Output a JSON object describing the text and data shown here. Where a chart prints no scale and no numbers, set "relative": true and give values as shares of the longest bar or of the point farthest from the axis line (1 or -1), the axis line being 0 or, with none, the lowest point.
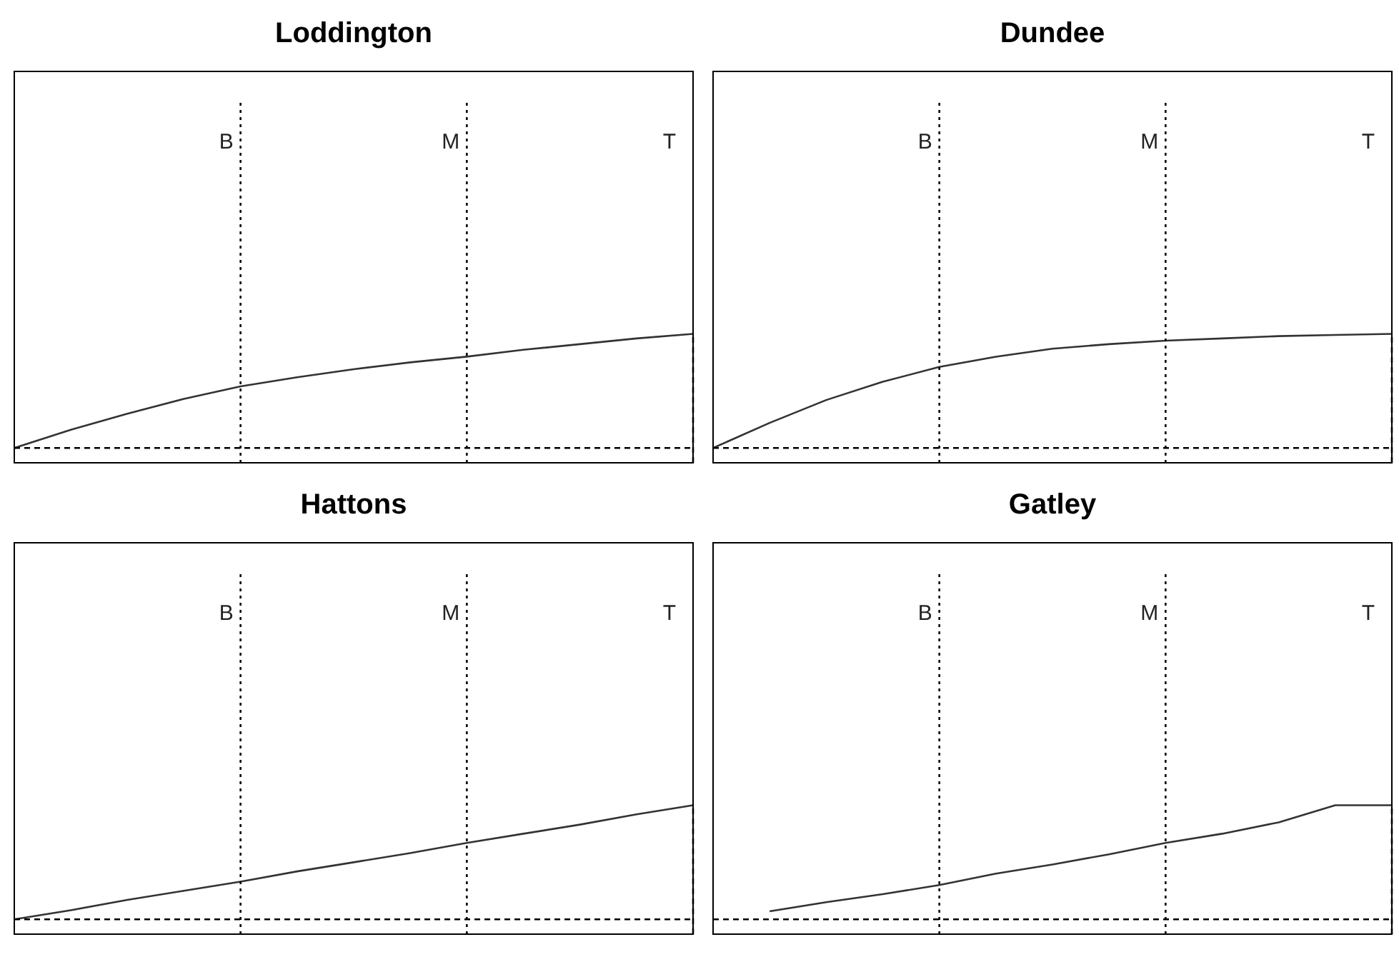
{
  "chart_data": [
    {
      "type": "line",
      "title": "Loddington",
      "relative": true,
      "categories": [
        null,
        null,
        null,
        null,
        null,
        null,
        null,
        null,
        null,
        null,
        null,
        null,
        null
      ],
      "series": [
        {
          "color": "#333333",
          "values": [
            0,
            0.16,
            0.3,
            0.43,
            0.54,
            0.62,
            0.69,
            0.75,
            0.8,
            0.86,
            0.91,
            0.96,
            1
          ]
        }
      ],
      "annotations": [
        "B",
        "M",
        "T"
      ],
      "grid": false,
      "legend": false,
      "marker": "none",
      "line_style": "solid"
    },
    {
      "type": "line",
      "title": "Dundee",
      "relative": true,
      "categories": [
        null,
        null,
        null,
        null,
        null,
        null,
        null,
        null,
        null,
        null,
        null,
        null,
        null
      ],
      "series": [
        {
          "color": "#333333",
          "values": [
            0,
            0.22,
            0.42,
            0.58,
            0.71,
            0.8,
            0.87,
            0.91,
            0.94,
            0.96,
            0.98,
            0.99,
            1
          ]
        }
      ],
      "annotations": [
        "B",
        "M",
        "T"
      ],
      "grid": false,
      "legend": false,
      "marker": "none",
      "line_style": "solid"
    },
    {
      "type": "line",
      "title": "Hattons",
      "relative": true,
      "categories": [
        null,
        null,
        null,
        null,
        null,
        null,
        null,
        null,
        null,
        null,
        null,
        null,
        null
      ],
      "series": [
        {
          "color": "#333333",
          "values": [
            0,
            0.08,
            0.17,
            0.25,
            0.33,
            0.42,
            0.5,
            0.58,
            0.67,
            0.75,
            0.83,
            0.92,
            1
          ]
        }
      ],
      "annotations": [
        "B",
        "M",
        "T"
      ],
      "grid": false,
      "legend": false,
      "marker": "none",
      "line_style": "solid"
    },
    {
      "type": "line",
      "title": "Gatley",
      "relative": true,
      "categories": [
        null,
        null,
        null,
        null,
        null,
        null,
        null,
        null,
        null,
        null,
        null,
        null,
        null
      ],
      "series": [
        {
          "color": "#333333",
          "values": [
            null,
            0.07,
            0.15,
            0.22,
            0.3,
            0.4,
            0.48,
            0.57,
            0.67,
            0.75,
            0.85,
            1,
            1
          ]
        }
      ],
      "annotations": [
        "B",
        "M",
        "T"
      ],
      "grid": false,
      "legend": false,
      "marker": "none",
      "line_style": "solid"
    }
  ]
}
